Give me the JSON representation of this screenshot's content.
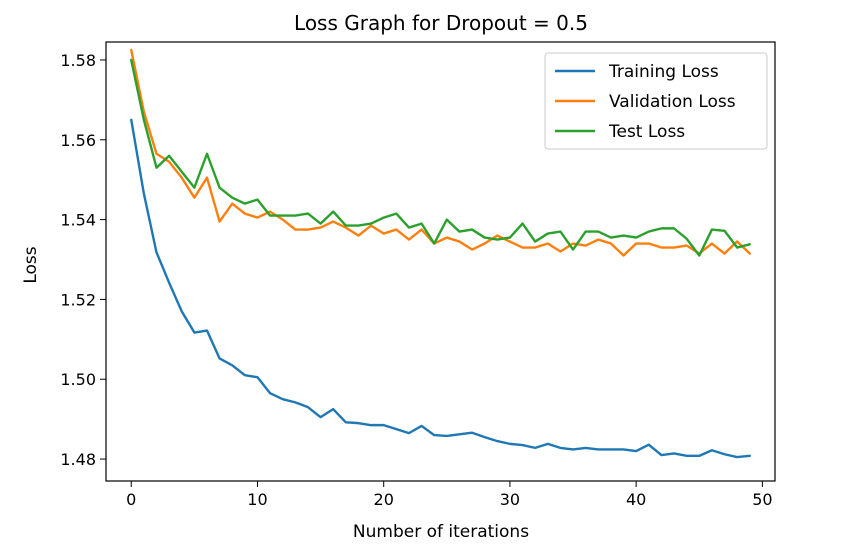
{
  "chart_data": {
    "type": "line",
    "title": "Loss Graph for Dropout = 0.5",
    "xlabel": "Number of iterations",
    "ylabel": "Loss",
    "xlim": [
      -2,
      51
    ],
    "ylim": [
      1.4745,
      1.5845
    ],
    "xticks": [
      0,
      10,
      20,
      30,
      40,
      50
    ],
    "xtick_labels": [
      "0",
      "10",
      "20",
      "30",
      "40",
      "50"
    ],
    "yticks": [
      1.48,
      1.5,
      1.52,
      1.54,
      1.56,
      1.58
    ],
    "ytick_labels": [
      "1.48",
      "1.50",
      "1.52",
      "1.54",
      "1.56",
      "1.58"
    ],
    "grid": false,
    "legend_position": "top-right",
    "x": [
      0,
      1,
      2,
      3,
      4,
      5,
      6,
      7,
      8,
      9,
      10,
      11,
      12,
      13,
      14,
      15,
      16,
      17,
      18,
      19,
      20,
      21,
      22,
      23,
      24,
      25,
      26,
      27,
      28,
      29,
      30,
      31,
      32,
      33,
      34,
      35,
      36,
      37,
      38,
      39,
      40,
      41,
      42,
      43,
      44,
      45,
      46,
      47,
      48,
      49
    ],
    "series": [
      {
        "name": "Training Loss",
        "color": "#1f77b4",
        "values": [
          1.565,
          1.5465,
          1.5318,
          1.5242,
          1.517,
          1.5117,
          1.5122,
          1.5052,
          1.5035,
          1.501,
          1.5005,
          1.4965,
          1.495,
          1.4942,
          1.493,
          1.4905,
          1.4925,
          1.4892,
          1.489,
          1.4885,
          1.4885,
          1.4875,
          1.4865,
          1.4883,
          1.486,
          1.4858,
          1.4862,
          1.4866,
          1.4855,
          1.4845,
          1.4838,
          1.4835,
          1.4828,
          1.4838,
          1.4828,
          1.4824,
          1.4828,
          1.4824,
          1.4824,
          1.4824,
          1.482,
          1.4836,
          1.481,
          1.4814,
          1.4808,
          1.4808,
          1.4822,
          1.4812,
          1.4805,
          1.4808
        ]
      },
      {
        "name": "Validation Loss",
        "color": "#ff7f0e",
        "values": [
          1.5825,
          1.567,
          1.5565,
          1.5545,
          1.5505,
          1.5455,
          1.5505,
          1.5395,
          1.544,
          1.5415,
          1.5405,
          1.542,
          1.54,
          1.5375,
          1.5375,
          1.538,
          1.5395,
          1.538,
          1.536,
          1.5385,
          1.5365,
          1.5375,
          1.535,
          1.5375,
          1.534,
          1.5355,
          1.5345,
          1.5325,
          1.534,
          1.536,
          1.5345,
          1.533,
          1.533,
          1.534,
          1.532,
          1.534,
          1.5335,
          1.535,
          1.534,
          1.531,
          1.534,
          1.534,
          1.533,
          1.533,
          1.5335,
          1.5315,
          1.534,
          1.5315,
          1.5345,
          1.5315
        ]
      },
      {
        "name": "Test Loss",
        "color": "#2ca02c",
        "values": [
          1.58,
          1.565,
          1.553,
          1.556,
          1.552,
          1.548,
          1.5565,
          1.548,
          1.5455,
          1.544,
          1.545,
          1.541,
          1.541,
          1.541,
          1.5415,
          1.539,
          1.542,
          1.5385,
          1.5385,
          1.539,
          1.5405,
          1.5415,
          1.538,
          1.539,
          1.534,
          1.54,
          1.537,
          1.5375,
          1.5355,
          1.535,
          1.5355,
          1.539,
          1.5345,
          1.5365,
          1.537,
          1.5325,
          1.537,
          1.537,
          1.5355,
          1.536,
          1.5355,
          1.537,
          1.5378,
          1.5378,
          1.5352,
          1.531,
          1.5375,
          1.5372,
          1.533,
          1.5338
        ]
      }
    ]
  }
}
